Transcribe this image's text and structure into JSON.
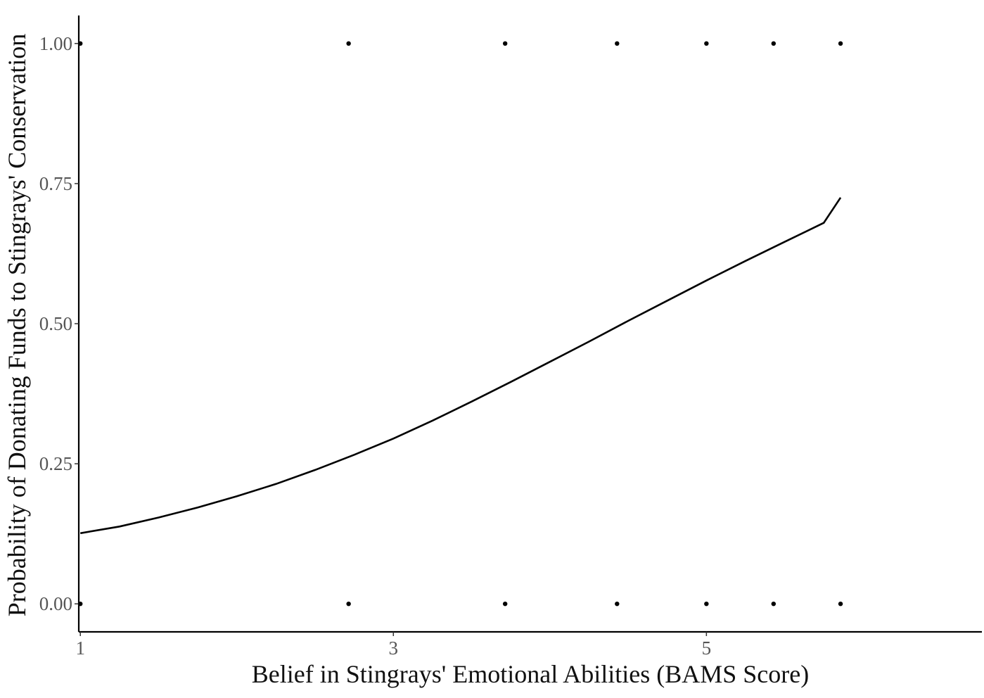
{
  "chart_data": {
    "type": "scatter",
    "xlabel": "Belief in Stingrays' Emotional Abilities (BAMS Score)",
    "ylabel": "Probability of Donating Funds to Stingrays' Conservation",
    "xlim": [
      0.99,
      6.76
    ],
    "ylim": [
      -0.05,
      1.05
    ],
    "x_ticks": [
      1,
      3,
      5
    ],
    "x_tick_labels": [
      "1",
      "3",
      "5"
    ],
    "y_ticks": [
      0,
      0.25,
      0.5,
      0.75,
      1
    ],
    "y_tick_labels": [
      "0.00",
      "0.25",
      "0.50",
      "0.75",
      "1.00"
    ],
    "grid": false,
    "series": [
      {
        "kind": "points",
        "x": [
          1.0,
          2.714,
          3.714,
          4.429,
          5.0,
          5.429,
          5.857,
          1.0,
          2.714,
          3.714,
          4.429,
          5.0,
          5.429,
          5.857
        ],
        "y": [
          1,
          1,
          1,
          1,
          1,
          1,
          1,
          0,
          0,
          0,
          0,
          0,
          0,
          0
        ]
      },
      {
        "kind": "line",
        "x": [
          1.0,
          1.25,
          1.5,
          1.75,
          2.0,
          2.25,
          2.5,
          2.75,
          3.0,
          3.25,
          3.5,
          3.75,
          4.0,
          4.25,
          4.5,
          4.75,
          5.0,
          5.25,
          5.5,
          5.75,
          5.857
        ],
        "y": [
          0.126,
          0.138,
          0.154,
          0.172,
          0.192,
          0.214,
          0.239,
          0.266,
          0.295,
          0.327,
          0.361,
          0.396,
          0.432,
          0.468,
          0.505,
          0.541,
          0.577,
          0.612,
          0.646,
          0.68,
          0.725
        ]
      }
    ]
  }
}
